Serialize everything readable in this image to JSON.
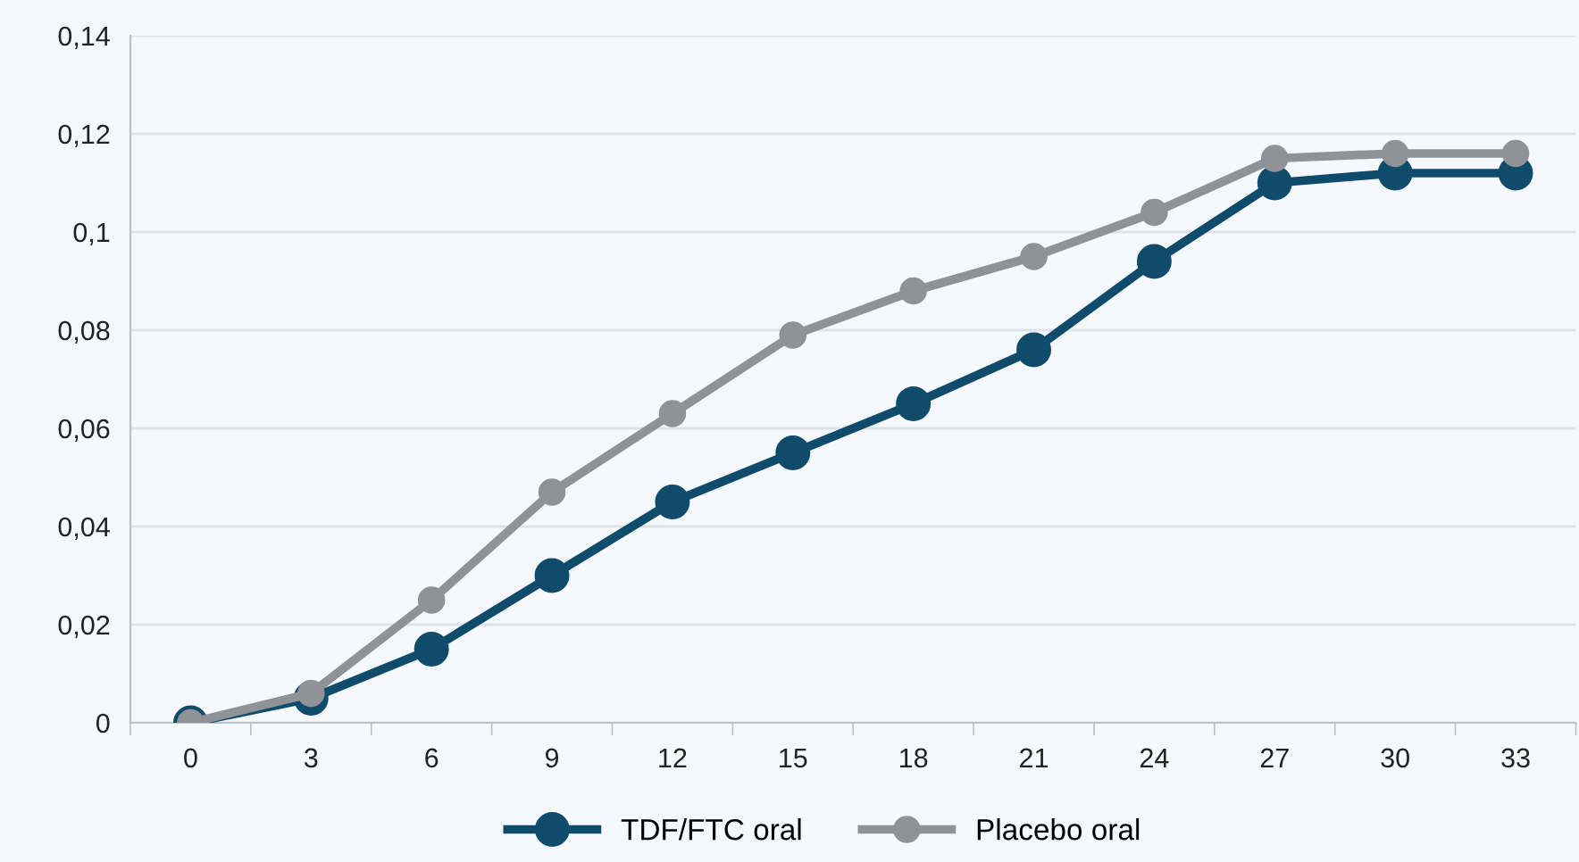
{
  "chart_data": {
    "type": "line",
    "categories": [
      "0",
      "3",
      "6",
      "9",
      "12",
      "15",
      "18",
      "21",
      "24",
      "27",
      "30",
      "33"
    ],
    "series": [
      {
        "name": "TDF/FTC oral",
        "color": "#0f4c6c",
        "values": [
          0,
          0.005,
          0.015,
          0.03,
          0.045,
          0.055,
          0.065,
          0.076,
          0.094,
          0.11,
          0.112,
          0.112
        ]
      },
      {
        "name": "Placebo oral",
        "color": "#8f9297",
        "values": [
          0,
          0.006,
          0.025,
          0.047,
          0.063,
          0.079,
          0.088,
          0.095,
          0.104,
          0.115,
          0.116,
          0.116
        ]
      }
    ],
    "ylim": [
      0,
      0.14
    ],
    "yticks": [
      {
        "value": 0,
        "label": "0"
      },
      {
        "value": 0.02,
        "label": "0,02"
      },
      {
        "value": 0.04,
        "label": "0,04"
      },
      {
        "value": 0.06,
        "label": "0,06"
      },
      {
        "value": 0.08,
        "label": "0,08"
      },
      {
        "value": 0.1,
        "label": "0,1"
      },
      {
        "value": 0.12,
        "label": "0,12"
      },
      {
        "value": 0.14,
        "label": "0,14"
      }
    ],
    "grid": "y",
    "legend": "bottom",
    "marker": "circle",
    "line_style": "solid"
  }
}
